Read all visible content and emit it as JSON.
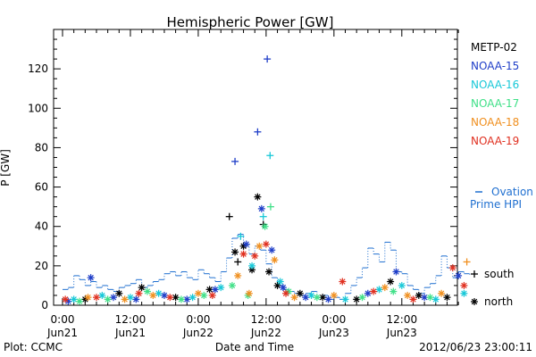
{
  "chart_data": {
    "type": "scatter",
    "title": "Hemispheric Power [GW]",
    "xlabel": "Date and Time",
    "ylabel": "P [GW]",
    "ylim": [
      0,
      140
    ],
    "xlim": [
      0,
      72
    ],
    "y_ticks": [
      0,
      20,
      40,
      60,
      80,
      100,
      120
    ],
    "x_ticks": [
      {
        "x": 0,
        "top": "0:00",
        "bottom": "Jun21"
      },
      {
        "x": 12,
        "top": "12:00",
        "bottom": "Jun21"
      },
      {
        "x": 24,
        "top": "0:00",
        "bottom": "Jun22"
      },
      {
        "x": 36,
        "top": "12:00",
        "bottom": "Jun22"
      },
      {
        "x": 48,
        "top": "0:00",
        "bottom": "Jun23"
      },
      {
        "x": 60,
        "top": "12:00",
        "bottom": "Jun23"
      }
    ],
    "grid": false,
    "legend_position": "right",
    "series": [
      {
        "name": "METP-02",
        "color": "#000000",
        "points": [
          {
            "x": 4,
            "y": 3,
            "h": "north"
          },
          {
            "x": 10,
            "y": 6,
            "h": "north"
          },
          {
            "x": 14,
            "y": 9,
            "h": "north"
          },
          {
            "x": 20,
            "y": 4,
            "h": "north"
          },
          {
            "x": 26,
            "y": 8,
            "h": "north"
          },
          {
            "x": 29.5,
            "y": 45,
            "h": "south"
          },
          {
            "x": 30.5,
            "y": 27,
            "h": "north"
          },
          {
            "x": 31,
            "y": 22,
            "h": "south"
          },
          {
            "x": 32,
            "y": 30,
            "h": "north"
          },
          {
            "x": 33.5,
            "y": 18,
            "h": "north"
          },
          {
            "x": 34.5,
            "y": 55,
            "h": "north"
          },
          {
            "x": 35.5,
            "y": 41,
            "h": "south"
          },
          {
            "x": 36.5,
            "y": 17,
            "h": "north"
          },
          {
            "x": 38,
            "y": 10,
            "h": "north"
          },
          {
            "x": 42,
            "y": 6,
            "h": "north"
          },
          {
            "x": 46,
            "y": 4,
            "h": "north"
          },
          {
            "x": 52,
            "y": 3,
            "h": "north"
          },
          {
            "x": 58,
            "y": 12,
            "h": "north"
          },
          {
            "x": 63,
            "y": 5,
            "h": "north"
          },
          {
            "x": 68,
            "y": 4,
            "h": "north"
          }
        ]
      },
      {
        "name": "NOAA-15",
        "color": "#1f3ec8",
        "points": [
          {
            "x": 1,
            "y": 2,
            "h": "north"
          },
          {
            "x": 5,
            "y": 14,
            "h": "north"
          },
          {
            "x": 9,
            "y": 4,
            "h": "north"
          },
          {
            "x": 13,
            "y": 3,
            "h": "north"
          },
          {
            "x": 18,
            "y": 5,
            "h": "north"
          },
          {
            "x": 22,
            "y": 3,
            "h": "north"
          },
          {
            "x": 27,
            "y": 8,
            "h": "north"
          },
          {
            "x": 30.5,
            "y": 73,
            "h": "south"
          },
          {
            "x": 32.5,
            "y": 31,
            "h": "north"
          },
          {
            "x": 34.5,
            "y": 88,
            "h": "south"
          },
          {
            "x": 35.2,
            "y": 49,
            "h": "north"
          },
          {
            "x": 36.2,
            "y": 125,
            "h": "south"
          },
          {
            "x": 37,
            "y": 28,
            "h": "north"
          },
          {
            "x": 39,
            "y": 9,
            "h": "north"
          },
          {
            "x": 43,
            "y": 4,
            "h": "north"
          },
          {
            "x": 47,
            "y": 3,
            "h": "north"
          },
          {
            "x": 54,
            "y": 6,
            "h": "north"
          },
          {
            "x": 59,
            "y": 17,
            "h": "north"
          },
          {
            "x": 64,
            "y": 4,
            "h": "north"
          },
          {
            "x": 70,
            "y": 15,
            "h": "north"
          }
        ]
      },
      {
        "name": "NOAA-16",
        "color": "#18c8d8",
        "points": [
          {
            "x": 2,
            "y": 3,
            "h": "north"
          },
          {
            "x": 7,
            "y": 5,
            "h": "north"
          },
          {
            "x": 12,
            "y": 4,
            "h": "north"
          },
          {
            "x": 17,
            "y": 6,
            "h": "north"
          },
          {
            "x": 23,
            "y": 4,
            "h": "north"
          },
          {
            "x": 28,
            "y": 9,
            "h": "north"
          },
          {
            "x": 31.5,
            "y": 35,
            "h": "south"
          },
          {
            "x": 33.5,
            "y": 20,
            "h": "north"
          },
          {
            "x": 35.5,
            "y": 45,
            "h": "south"
          },
          {
            "x": 36.7,
            "y": 76,
            "h": "south"
          },
          {
            "x": 38.5,
            "y": 12,
            "h": "north"
          },
          {
            "x": 44,
            "y": 5,
            "h": "north"
          },
          {
            "x": 50,
            "y": 3,
            "h": "north"
          },
          {
            "x": 56,
            "y": 8,
            "h": "north"
          },
          {
            "x": 60,
            "y": 10,
            "h": "north"
          },
          {
            "x": 66,
            "y": 3,
            "h": "north"
          },
          {
            "x": 71,
            "y": 6,
            "h": "north"
          }
        ]
      },
      {
        "name": "NOAA-17",
        "color": "#40e088",
        "points": [
          {
            "x": 3,
            "y": 2,
            "h": "north"
          },
          {
            "x": 8,
            "y": 3,
            "h": "north"
          },
          {
            "x": 15,
            "y": 7,
            "h": "north"
          },
          {
            "x": 21,
            "y": 3,
            "h": "north"
          },
          {
            "x": 25,
            "y": 5,
            "h": "north"
          },
          {
            "x": 30,
            "y": 10,
            "h": "north"
          },
          {
            "x": 32.8,
            "y": 5,
            "h": "north"
          },
          {
            "x": 35.8,
            "y": 40,
            "h": "north"
          },
          {
            "x": 36.8,
            "y": 50,
            "h": "south"
          },
          {
            "x": 40,
            "y": 7,
            "h": "north"
          },
          {
            "x": 45,
            "y": 4,
            "h": "north"
          },
          {
            "x": 53,
            "y": 4,
            "h": "north"
          },
          {
            "x": 58.5,
            "y": 7,
            "h": "north"
          },
          {
            "x": 65,
            "y": 4,
            "h": "north"
          }
        ]
      },
      {
        "name": "NOAA-18",
        "color": "#f09020",
        "points": [
          {
            "x": 4.5,
            "y": 4,
            "h": "north"
          },
          {
            "x": 11,
            "y": 3,
            "h": "north"
          },
          {
            "x": 16,
            "y": 5,
            "h": "north"
          },
          {
            "x": 24,
            "y": 6,
            "h": "north"
          },
          {
            "x": 31,
            "y": 15,
            "h": "north"
          },
          {
            "x": 33,
            "y": 6,
            "h": "north"
          },
          {
            "x": 34.8,
            "y": 30,
            "h": "north"
          },
          {
            "x": 37.5,
            "y": 23,
            "h": "north"
          },
          {
            "x": 41,
            "y": 4,
            "h": "north"
          },
          {
            "x": 48,
            "y": 5,
            "h": "north"
          },
          {
            "x": 57,
            "y": 9,
            "h": "north"
          },
          {
            "x": 61,
            "y": 5,
            "h": "north"
          },
          {
            "x": 67,
            "y": 6,
            "h": "north"
          },
          {
            "x": 71.5,
            "y": 22,
            "h": "south"
          }
        ]
      },
      {
        "name": "NOAA-19",
        "color": "#e03020",
        "points": [
          {
            "x": 0.5,
            "y": 3,
            "h": "north"
          },
          {
            "x": 6,
            "y": 4,
            "h": "north"
          },
          {
            "x": 13.5,
            "y": 6,
            "h": "north"
          },
          {
            "x": 19,
            "y": 4,
            "h": "north"
          },
          {
            "x": 26.5,
            "y": 5,
            "h": "north"
          },
          {
            "x": 32,
            "y": 26,
            "h": "north"
          },
          {
            "x": 34,
            "y": 25,
            "h": "north"
          },
          {
            "x": 36,
            "y": 31,
            "h": "north"
          },
          {
            "x": 39.5,
            "y": 6,
            "h": "north"
          },
          {
            "x": 49.5,
            "y": 12,
            "h": "north"
          },
          {
            "x": 55,
            "y": 7,
            "h": "north"
          },
          {
            "x": 62,
            "y": 3,
            "h": "north"
          },
          {
            "x": 69,
            "y": 19,
            "h": "north"
          },
          {
            "x": 71,
            "y": 10,
            "h": "north"
          }
        ]
      }
    ],
    "ovation": {
      "name": "Ovation Prime HPI",
      "legend_line1": "Ovation",
      "legend_line2": "Prime HPI",
      "color": "#1f6fd0",
      "step": [
        [
          0,
          8
        ],
        [
          1,
          9
        ],
        [
          2,
          15
        ],
        [
          3,
          13
        ],
        [
          4,
          10
        ],
        [
          5,
          12
        ],
        [
          6,
          9
        ],
        [
          7,
          10
        ],
        [
          8,
          8
        ],
        [
          9,
          7
        ],
        [
          10,
          9
        ],
        [
          11,
          10
        ],
        [
          12,
          11
        ],
        [
          13,
          13
        ],
        [
          14,
          9
        ],
        [
          15,
          10
        ],
        [
          16,
          12
        ],
        [
          17,
          13
        ],
        [
          18,
          16
        ],
        [
          19,
          17
        ],
        [
          20,
          15
        ],
        [
          21,
          17
        ],
        [
          22,
          14
        ],
        [
          23,
          13
        ],
        [
          24,
          18
        ],
        [
          25,
          16
        ],
        [
          26,
          14
        ],
        [
          27,
          12
        ],
        [
          28,
          17
        ],
        [
          29,
          24
        ],
        [
          30,
          34
        ],
        [
          31,
          36
        ],
        [
          32,
          31
        ],
        [
          33,
          26
        ],
        [
          34,
          30
        ],
        [
          35,
          28
        ],
        [
          36,
          21
        ],
        [
          37,
          14
        ],
        [
          38,
          10
        ],
        [
          39,
          8
        ],
        [
          40,
          7
        ],
        [
          41,
          6
        ],
        [
          42,
          5
        ],
        [
          43,
          6
        ],
        [
          44,
          7
        ],
        [
          45,
          4
        ],
        [
          46,
          5
        ],
        [
          47,
          3
        ],
        [
          48,
          4
        ],
        [
          49,
          3
        ],
        [
          50,
          6
        ],
        [
          51,
          10
        ],
        [
          52,
          14
        ],
        [
          53,
          19
        ],
        [
          54,
          29
        ],
        [
          55,
          26
        ],
        [
          56,
          22
        ],
        [
          57,
          32
        ],
        [
          58,
          28
        ],
        [
          59,
          17
        ],
        [
          60,
          16
        ],
        [
          61,
          10
        ],
        [
          62,
          8
        ],
        [
          63,
          6
        ],
        [
          64,
          9
        ],
        [
          65,
          11
        ],
        [
          66,
          15
        ],
        [
          67,
          25
        ],
        [
          68,
          19
        ],
        [
          69,
          14
        ],
        [
          70,
          17
        ],
        [
          71,
          16
        ],
        [
          72,
          15
        ]
      ]
    },
    "symbol_legend": {
      "south": "south",
      "north": "north"
    }
  },
  "footer": {
    "left": "Plot: CCMC",
    "right": "2012/06/23 23:00:11"
  }
}
